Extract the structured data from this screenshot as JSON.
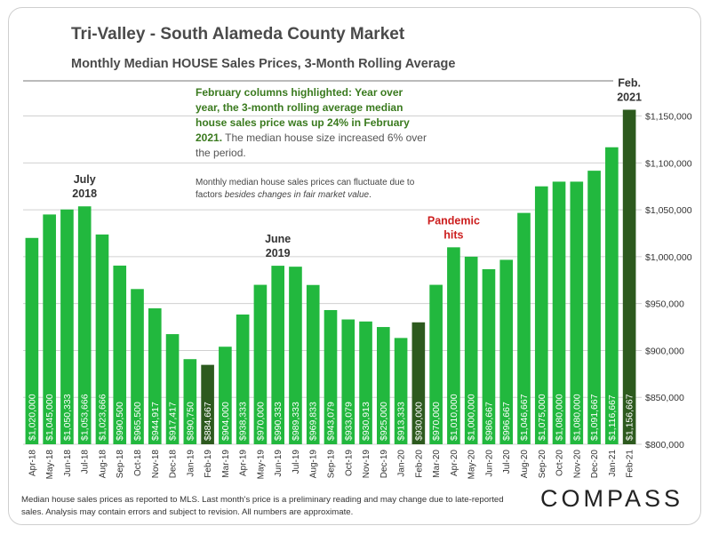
{
  "title": "Tri-Valley - South Alameda County Market",
  "subtitle": "Monthly Median HOUSE Sales Prices, 3-Month Rolling Average",
  "note": {
    "highlight": "February columns highlighted: Year over year, the 3-month rolling average median house sales price was up 24% in February 2021.",
    "rest": "The median house size increased 6% over the period.",
    "secondary_a": "Monthly median house sales prices can fluctuate due to factors ",
    "secondary_em": "besides changes in fair market value",
    "secondary_b": "."
  },
  "footer": "Median house sales prices as reported to MLS. Last month's price is a preliminary reading and may change due to late-reported sales. Analysis may contain errors and subject to revision. All numbers are approximate.",
  "logo": "COMPASS",
  "colors": {
    "bar": "#22b83e",
    "highlight": "#2d5a1e",
    "grid": "#d0d0d0"
  },
  "chart_data": {
    "type": "bar",
    "title": "Monthly Median HOUSE Sales Prices, 3-Month Rolling Average",
    "categories": [
      "Apr-18",
      "May-18",
      "Jun-18",
      "Jul-18",
      "Aug-18",
      "Sep-18",
      "Oct-18",
      "Nov-18",
      "Dec-18",
      "Jan-19",
      "Feb-19",
      "Mar-19",
      "Apr-19",
      "May-19",
      "Jun-19",
      "Jul-19",
      "Aug-19",
      "Sep-19",
      "Oct-19",
      "Nov-19",
      "Dec-19",
      "Jan-20",
      "Feb-20",
      "Mar-20",
      "Apr-20",
      "May-20",
      "Jun-20",
      "Jul-20",
      "Aug-20",
      "Sep-20",
      "Oct-20",
      "Nov-20",
      "Dec-20",
      "Jan-21",
      "Feb-21"
    ],
    "values": [
      1020000,
      1045000,
      1050333,
      1053666,
      1023666,
      990500,
      965500,
      944917,
      917417,
      890750,
      884667,
      904000,
      938333,
      970000,
      990333,
      989333,
      969833,
      943079,
      933079,
      930913,
      925000,
      913333,
      930000,
      970000,
      1010000,
      1000000,
      986667,
      996667,
      1046667,
      1075000,
      1080000,
      1080000,
      1091667,
      1116667,
      1156667
    ],
    "value_labels": [
      "$1,020,000",
      "$1,045,000",
      "$1,050,333",
      "$1,053,666",
      "$1,023,666",
      "$990,500",
      "$965,500",
      "$944,917",
      "$917,417",
      "$890,750",
      "$884,667",
      "$904,000",
      "$938,333",
      "$970,000",
      "$990,333",
      "$989,333",
      "$969,833",
      "$943,079",
      "$933,079",
      "$930,913",
      "$925,000",
      "$913,333",
      "$930,000",
      "$970,000",
      "$1,010,000",
      "$1,000,000",
      "$986,667",
      "$996,667",
      "$1,046,667",
      "$1,075,000",
      "$1,080,000",
      "$1,080,000",
      "$1,091,667",
      "$1,116,667",
      "$1,156,667"
    ],
    "highlighted": [
      "Feb-19",
      "Feb-20",
      "Feb-21"
    ],
    "ylim": [
      800000,
      1160000
    ],
    "yticks": [
      800000,
      850000,
      900000,
      950000,
      1000000,
      1050000,
      1100000,
      1150000
    ],
    "ytick_labels": [
      "$800,000",
      "$850,000",
      "$900,000",
      "$950,000",
      "$1,000,000",
      "$1,050,000",
      "$1,100,000",
      "$1,150,000"
    ],
    "y_axis_side": "right",
    "grid": true,
    "annotations": [
      {
        "category": "Jul-18",
        "lines": [
          "July",
          "2018"
        ],
        "style": "dark"
      },
      {
        "category": "Jun-19",
        "lines": [
          "June",
          "2019"
        ],
        "style": "dark"
      },
      {
        "category": "Apr-20",
        "lines": [
          "Pandemic",
          "hits"
        ],
        "style": "red"
      },
      {
        "category": "Feb-21",
        "lines": [
          "Feb.",
          "2021"
        ],
        "style": "dark"
      }
    ]
  }
}
